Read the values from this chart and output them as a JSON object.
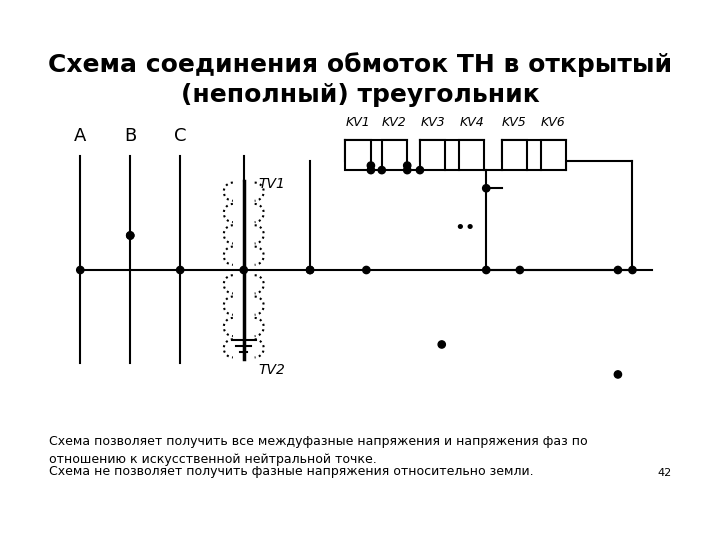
{
  "title": "Схема соединения обмоток ТН в открытый\n(неполный) треугольник",
  "title_fontsize": 18,
  "body_text1": "Схема позволяет получить все междуфазные напряжения и напряжения фаз по\nотношению к искусственной нейтральной точке.",
  "body_text2": "Схема не позволяет получить фазные напряжения относительно земли.",
  "page_num": "42",
  "bg_color": "#ffffff",
  "line_color": "#000000",
  "kv_labels": [
    "KV1",
    "KV2",
    "KV3",
    "KV4",
    "KV5",
    "KV6"
  ],
  "phase_labels": [
    "A",
    "B",
    "C"
  ],
  "tv_labels": [
    "TV1",
    "TV2"
  ]
}
